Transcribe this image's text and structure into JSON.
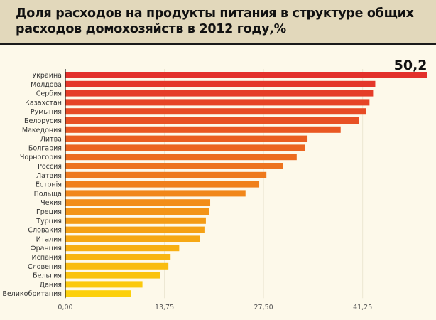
{
  "chart_data": {
    "type": "bar",
    "orientation": "horizontal",
    "title": "Доля расходов на продукты питания в структуре общих расходов домохозяйств в 2012 году,%",
    "title_lines": [
      "Доля расходов на продукты питания в структуре общих",
      "расходов домохозяйств в 2012 году,%"
    ],
    "xlabel": "",
    "ylabel": "",
    "xlim": [
      0,
      55
    ],
    "xticks": [
      0,
      13.75,
      27.5,
      41.25
    ],
    "xtick_labels": [
      "0,00",
      "13,75",
      "27,50",
      "41,25"
    ],
    "grid": true,
    "annotation": {
      "category": "Украина",
      "text": "50,2"
    },
    "categories": [
      "Украина",
      "Молдова",
      "Сербия",
      "Казахстан",
      "Румыния",
      "Белорусия",
      "Македония",
      "Литва",
      "Болгария",
      "Чорногория",
      "Россия",
      "Латвия",
      "Естонія",
      "Польща",
      "Чехия",
      "Греция",
      "Турция",
      "Словакия",
      "Италия",
      "Франция",
      "Испания",
      "Словения",
      "Бельгия",
      "Дания",
      "Великобритания"
    ],
    "values": [
      50.2,
      43.0,
      42.7,
      42.2,
      41.7,
      40.7,
      38.2,
      33.6,
      33.3,
      32.1,
      30.2,
      27.9,
      26.9,
      25.0,
      20.1,
      20.0,
      19.5,
      19.3,
      18.7,
      15.8,
      14.6,
      14.3,
      13.2,
      10.7,
      9.1
    ],
    "colors": {
      "start": "#e3302a",
      "end": "#fcd00c",
      "grid": "#ece6d2",
      "axis": "#222222"
    }
  }
}
